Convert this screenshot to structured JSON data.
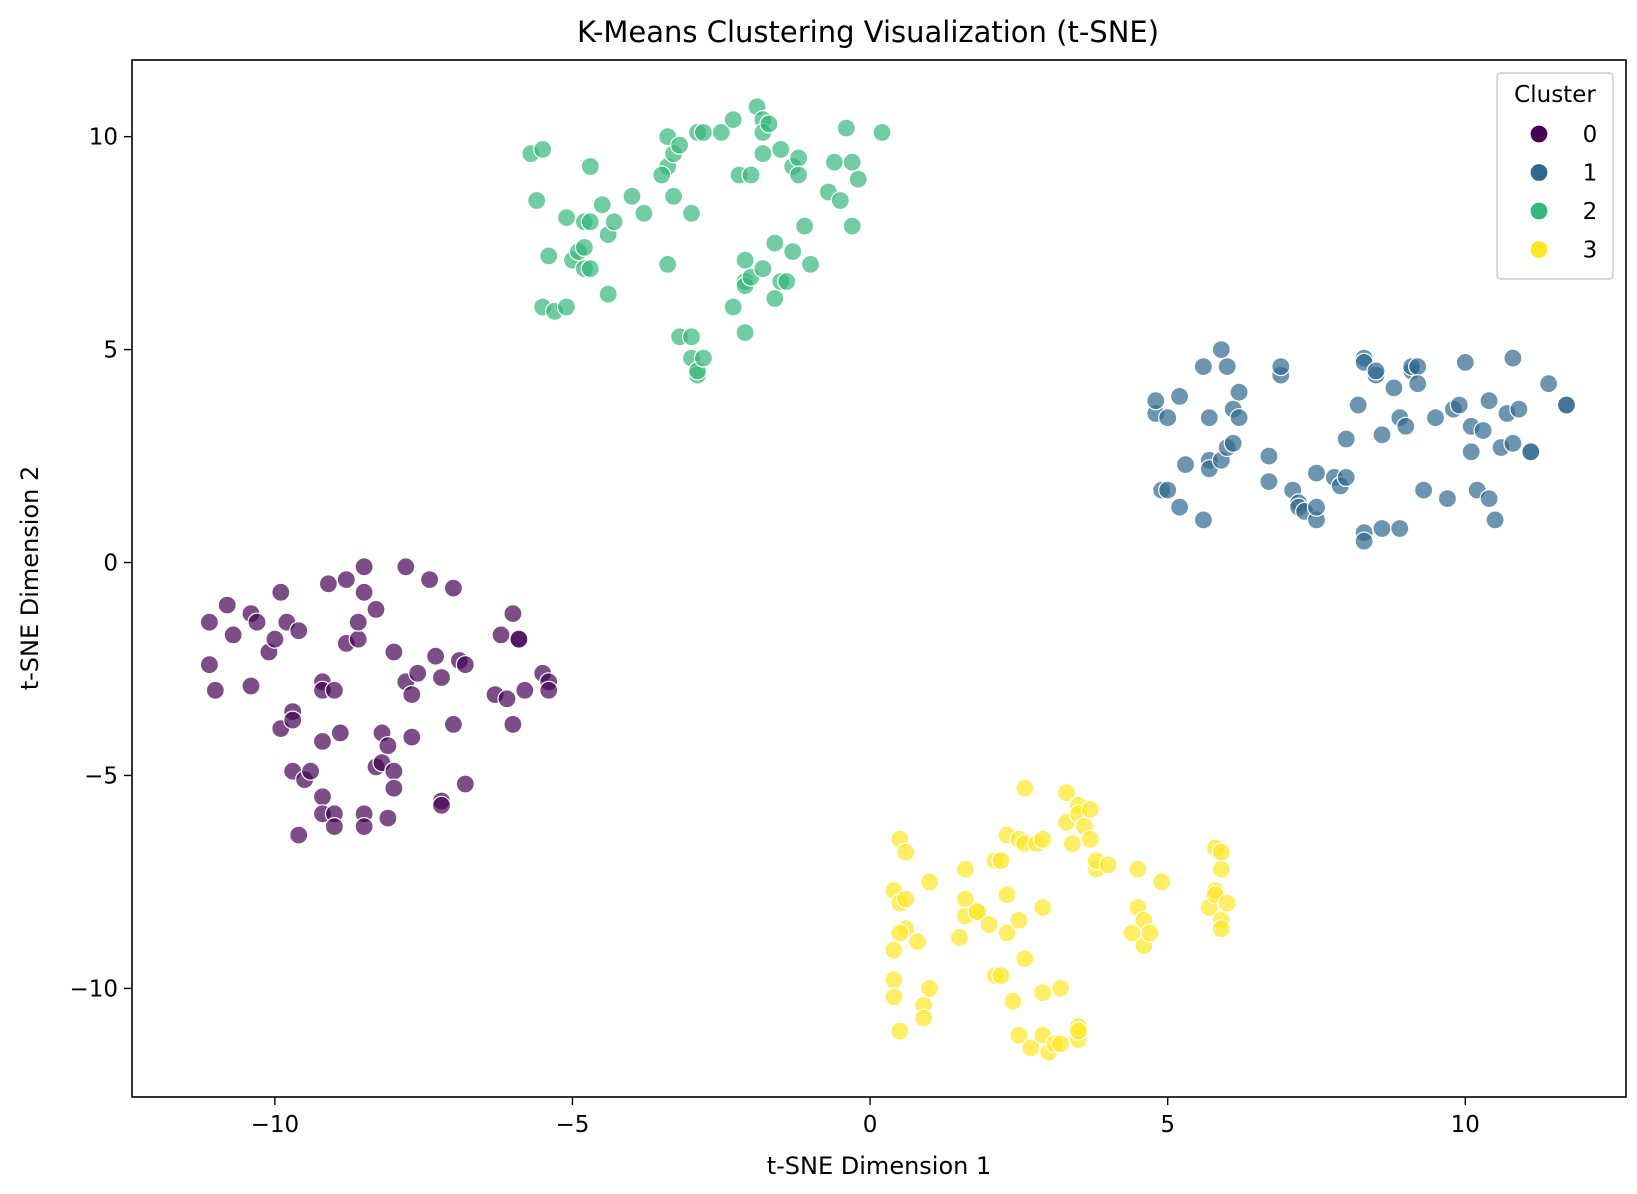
{
  "chart_data": {
    "type": "scatter",
    "title": "K-Means Clustering Visualization (t-SNE)",
    "xlabel": "t-SNE Dimension 1",
    "ylabel": "t-SNE Dimension 2",
    "xlim": [
      -12.4,
      12.7
    ],
    "ylim": [
      -12.55,
      11.8
    ],
    "x_ticks": [
      -10,
      -5,
      0,
      5,
      10
    ],
    "y_ticks": [
      -10,
      -5,
      0,
      5,
      10
    ],
    "x_tick_labels": [
      "−10",
      "−5",
      "0",
      "5",
      "10"
    ],
    "y_tick_labels": [
      "−10",
      "−5",
      "0",
      "5",
      "10"
    ],
    "grid": false,
    "legend": {
      "title": "Cluster",
      "placement": "top-right",
      "entries": [
        "0",
        "1",
        "2",
        "3"
      ]
    },
    "series": [
      {
        "name": "0",
        "color": "#440154",
        "points": [
          [
            -11.1,
            -1.4
          ],
          [
            -11.1,
            -2.4
          ],
          [
            -11.0,
            -3.0
          ],
          [
            -10.8,
            -1.0
          ],
          [
            -10.7,
            -1.7
          ],
          [
            -10.4,
            -1.2
          ],
          [
            -10.4,
            -2.9
          ],
          [
            -10.3,
            -1.4
          ],
          [
            -10.1,
            -2.1
          ],
          [
            -10.0,
            -1.8
          ],
          [
            -9.9,
            -0.7
          ],
          [
            -9.8,
            -1.4
          ],
          [
            -9.9,
            -3.9
          ],
          [
            -9.7,
            -3.5
          ],
          [
            -9.7,
            -3.7
          ],
          [
            -9.6,
            -1.6
          ],
          [
            -9.7,
            -4.9
          ],
          [
            -9.5,
            -5.1
          ],
          [
            -9.4,
            -4.9
          ],
          [
            -9.6,
            -6.4
          ],
          [
            -9.2,
            -2.8
          ],
          [
            -9.2,
            -3.0
          ],
          [
            -9.0,
            -3.0
          ],
          [
            -9.2,
            -4.2
          ],
          [
            -9.2,
            -5.5
          ],
          [
            -9.2,
            -5.9
          ],
          [
            -9.0,
            -5.9
          ],
          [
            -9.0,
            -6.2
          ],
          [
            -9.1,
            -0.5
          ],
          [
            -8.8,
            -0.4
          ],
          [
            -8.8,
            -1.9
          ],
          [
            -8.9,
            -4.0
          ],
          [
            -8.6,
            -1.8
          ],
          [
            -8.6,
            -1.4
          ],
          [
            -8.5,
            -0.1
          ],
          [
            -8.5,
            -0.7
          ],
          [
            -8.3,
            -1.1
          ],
          [
            -8.2,
            -4.0
          ],
          [
            -8.3,
            -4.8
          ],
          [
            -8.2,
            -4.7
          ],
          [
            -8.1,
            -4.3
          ],
          [
            -8.5,
            -5.9
          ],
          [
            -8.5,
            -6.2
          ],
          [
            -8.1,
            -6.0
          ],
          [
            -8.0,
            -2.1
          ],
          [
            -8.0,
            -4.9
          ],
          [
            -8.0,
            -5.3
          ],
          [
            -7.8,
            -0.1
          ],
          [
            -7.8,
            -2.8
          ],
          [
            -7.7,
            -3.1
          ],
          [
            -7.6,
            -2.6
          ],
          [
            -7.7,
            -4.1
          ],
          [
            -7.4,
            -0.4
          ],
          [
            -7.3,
            -2.2
          ],
          [
            -7.2,
            -2.7
          ],
          [
            -7.2,
            -5.6
          ],
          [
            -7.2,
            -5.7
          ],
          [
            -7.0,
            -0.6
          ],
          [
            -7.0,
            -3.8
          ],
          [
            -6.9,
            -2.3
          ],
          [
            -6.8,
            -2.4
          ],
          [
            -6.8,
            -5.2
          ],
          [
            -6.3,
            -3.1
          ],
          [
            -6.2,
            -1.7
          ],
          [
            -6.1,
            -3.2
          ],
          [
            -6.0,
            -1.2
          ],
          [
            -5.9,
            -1.8
          ],
          [
            -5.9,
            -1.8
          ],
          [
            -6.0,
            -3.8
          ],
          [
            -5.8,
            -3.0
          ],
          [
            -5.5,
            -2.6
          ],
          [
            -5.4,
            -2.8
          ],
          [
            -5.4,
            -3.0
          ]
        ]
      },
      {
        "name": "1",
        "color": "#31688e",
        "points": [
          [
            4.8,
            3.5
          ],
          [
            4.8,
            3.8
          ],
          [
            4.9,
            1.7
          ],
          [
            5.0,
            3.4
          ],
          [
            5.0,
            1.7
          ],
          [
            5.2,
            3.9
          ],
          [
            5.2,
            1.3
          ],
          [
            5.3,
            2.3
          ],
          [
            5.6,
            4.6
          ],
          [
            5.6,
            1.0
          ],
          [
            5.7,
            3.4
          ],
          [
            5.7,
            2.4
          ],
          [
            5.7,
            2.2
          ],
          [
            5.9,
            5.0
          ],
          [
            5.9,
            2.4
          ],
          [
            6.0,
            4.6
          ],
          [
            6.0,
            2.7
          ],
          [
            6.1,
            3.6
          ],
          [
            6.1,
            2.8
          ],
          [
            6.2,
            4.0
          ],
          [
            6.2,
            3.4
          ],
          [
            6.7,
            2.5
          ],
          [
            6.7,
            1.9
          ],
          [
            6.9,
            4.4
          ],
          [
            6.9,
            4.6
          ],
          [
            7.1,
            1.7
          ],
          [
            7.2,
            1.4
          ],
          [
            7.2,
            1.3
          ],
          [
            7.3,
            1.2
          ],
          [
            7.5,
            1.0
          ],
          [
            7.5,
            1.3
          ],
          [
            7.5,
            2.1
          ],
          [
            7.8,
            2.0
          ],
          [
            7.9,
            1.8
          ],
          [
            8.0,
            2.0
          ],
          [
            8.0,
            2.9
          ],
          [
            8.2,
            3.7
          ],
          [
            8.3,
            4.8
          ],
          [
            8.3,
            4.7
          ],
          [
            8.3,
            0.7
          ],
          [
            8.3,
            0.5
          ],
          [
            8.5,
            4.4
          ],
          [
            8.5,
            4.5
          ],
          [
            8.6,
            3.0
          ],
          [
            8.6,
            0.8
          ],
          [
            8.8,
            4.1
          ],
          [
            8.9,
            3.4
          ],
          [
            8.9,
            0.8
          ],
          [
            9.0,
            3.2
          ],
          [
            9.1,
            4.5
          ],
          [
            9.1,
            4.6
          ],
          [
            9.2,
            4.6
          ],
          [
            9.2,
            4.2
          ],
          [
            9.3,
            1.7
          ],
          [
            9.5,
            3.4
          ],
          [
            9.7,
            1.5
          ],
          [
            9.8,
            3.6
          ],
          [
            9.9,
            3.7
          ],
          [
            10.0,
            4.7
          ],
          [
            10.1,
            2.6
          ],
          [
            10.1,
            3.2
          ],
          [
            10.2,
            1.7
          ],
          [
            10.4,
            3.8
          ],
          [
            10.3,
            3.1
          ],
          [
            10.4,
            1.5
          ],
          [
            10.5,
            1.0
          ],
          [
            10.6,
            2.7
          ],
          [
            10.8,
            4.8
          ],
          [
            10.7,
            3.5
          ],
          [
            10.8,
            2.8
          ],
          [
            10.9,
            3.6
          ],
          [
            11.1,
            2.6
          ],
          [
            11.1,
            2.6
          ],
          [
            11.4,
            4.2
          ],
          [
            11.7,
            3.7
          ],
          [
            11.7,
            3.7
          ]
        ]
      },
      {
        "name": "2",
        "color": "#35b779",
        "points": [
          [
            -5.7,
            9.6
          ],
          [
            -5.6,
            8.5
          ],
          [
            -5.5,
            9.7
          ],
          [
            -5.5,
            6.0
          ],
          [
            -5.4,
            7.2
          ],
          [
            -5.3,
            5.9
          ],
          [
            -5.1,
            6.0
          ],
          [
            -5.1,
            8.1
          ],
          [
            -5.0,
            7.1
          ],
          [
            -4.9,
            7.3
          ],
          [
            -4.8,
            6.9
          ],
          [
            -4.8,
            7.4
          ],
          [
            -4.8,
            8.0
          ],
          [
            -4.7,
            8.0
          ],
          [
            -4.7,
            6.9
          ],
          [
            -4.7,
            9.3
          ],
          [
            -4.5,
            8.4
          ],
          [
            -4.4,
            7.7
          ],
          [
            -4.4,
            6.3
          ],
          [
            -4.3,
            8.0
          ],
          [
            -4.0,
            8.6
          ],
          [
            -3.8,
            8.2
          ],
          [
            -3.4,
            9.3
          ],
          [
            -3.5,
            9.1
          ],
          [
            -3.4,
            7.0
          ],
          [
            -3.3,
            9.6
          ],
          [
            -3.4,
            10.0
          ],
          [
            -3.3,
            8.6
          ],
          [
            -3.2,
            5.3
          ],
          [
            -3.2,
            9.8
          ],
          [
            -3.0,
            5.3
          ],
          [
            -3.0,
            8.2
          ],
          [
            -3.0,
            4.8
          ],
          [
            -2.9,
            10.1
          ],
          [
            -2.9,
            4.4
          ],
          [
            -2.9,
            4.5
          ],
          [
            -2.8,
            4.8
          ],
          [
            -2.8,
            10.1
          ],
          [
            -2.5,
            10.1
          ],
          [
            -2.3,
            6.0
          ],
          [
            -2.3,
            10.4
          ],
          [
            -2.2,
            9.1
          ],
          [
            -2.1,
            7.1
          ],
          [
            -2.1,
            6.6
          ],
          [
            -2.1,
            6.5
          ],
          [
            -2.1,
            5.4
          ],
          [
            -2.0,
            6.7
          ],
          [
            -2.0,
            9.1
          ],
          [
            -1.9,
            10.7
          ],
          [
            -1.8,
            10.4
          ],
          [
            -1.8,
            10.1
          ],
          [
            -1.8,
            9.6
          ],
          [
            -1.7,
            10.3
          ],
          [
            -1.8,
            6.9
          ],
          [
            -1.6,
            6.2
          ],
          [
            -1.6,
            7.5
          ],
          [
            -1.5,
            6.6
          ],
          [
            -1.5,
            9.7
          ],
          [
            -1.4,
            6.6
          ],
          [
            -1.3,
            7.3
          ],
          [
            -1.3,
            9.3
          ],
          [
            -1.2,
            9.5
          ],
          [
            -1.2,
            9.1
          ],
          [
            -1.1,
            7.9
          ],
          [
            -1.0,
            7.0
          ],
          [
            -0.7,
            8.7
          ],
          [
            -0.6,
            9.4
          ],
          [
            -0.5,
            8.5
          ],
          [
            -0.4,
            10.2
          ],
          [
            -0.3,
            7.9
          ],
          [
            -0.3,
            9.4
          ],
          [
            -0.2,
            9.0
          ],
          [
            0.2,
            10.1
          ]
        ]
      },
      {
        "name": "3",
        "color": "#fde725",
        "points": [
          [
            0.4,
            -9.8
          ],
          [
            0.4,
            -10.2
          ],
          [
            0.4,
            -9.1
          ],
          [
            0.4,
            -7.7
          ],
          [
            0.5,
            -6.5
          ],
          [
            0.5,
            -8.0
          ],
          [
            0.6,
            -8.6
          ],
          [
            0.5,
            -11.0
          ],
          [
            0.5,
            -8.7
          ],
          [
            0.6,
            -6.8
          ],
          [
            0.6,
            -7.9
          ],
          [
            0.8,
            -8.9
          ],
          [
            0.9,
            -10.4
          ],
          [
            0.9,
            -10.7
          ],
          [
            1.0,
            -10.0
          ],
          [
            1.0,
            -7.5
          ],
          [
            1.5,
            -8.8
          ],
          [
            1.6,
            -7.9
          ],
          [
            1.6,
            -8.3
          ],
          [
            1.6,
            -7.2
          ],
          [
            1.8,
            -8.2
          ],
          [
            1.8,
            -8.2
          ],
          [
            2.0,
            -8.5
          ],
          [
            2.1,
            -7.0
          ],
          [
            2.1,
            -9.7
          ],
          [
            2.2,
            -7.0
          ],
          [
            2.2,
            -9.7
          ],
          [
            2.3,
            -8.7
          ],
          [
            2.3,
            -7.8
          ],
          [
            2.3,
            -6.4
          ],
          [
            2.4,
            -10.3
          ],
          [
            2.5,
            -6.5
          ],
          [
            2.5,
            -8.4
          ],
          [
            2.5,
            -11.1
          ],
          [
            2.6,
            -5.3
          ],
          [
            2.6,
            -9.3
          ],
          [
            2.6,
            -6.6
          ],
          [
            2.7,
            -11.4
          ],
          [
            2.8,
            -6.6
          ],
          [
            2.9,
            -11.1
          ],
          [
            2.9,
            -8.1
          ],
          [
            2.9,
            -10.1
          ],
          [
            2.9,
            -6.5
          ],
          [
            3.0,
            -11.5
          ],
          [
            3.1,
            -11.3
          ],
          [
            3.2,
            -10.0
          ],
          [
            3.2,
            -11.3
          ],
          [
            3.3,
            -5.4
          ],
          [
            3.3,
            -6.1
          ],
          [
            3.4,
            -6.6
          ],
          [
            3.5,
            -5.7
          ],
          [
            3.5,
            -11.2
          ],
          [
            3.5,
            -10.9
          ],
          [
            3.5,
            -11.0
          ],
          [
            3.5,
            -5.9
          ],
          [
            3.6,
            -6.2
          ],
          [
            3.7,
            -5.8
          ],
          [
            3.7,
            -6.5
          ],
          [
            3.8,
            -7.2
          ],
          [
            3.8,
            -7.0
          ],
          [
            4.0,
            -7.1
          ],
          [
            4.4,
            -8.7
          ],
          [
            4.5,
            -7.2
          ],
          [
            4.5,
            -8.1
          ],
          [
            4.6,
            -8.4
          ],
          [
            4.6,
            -9.0
          ],
          [
            4.7,
            -8.7
          ],
          [
            4.9,
            -7.5
          ],
          [
            5.7,
            -8.1
          ],
          [
            5.8,
            -6.7
          ],
          [
            5.8,
            -7.7
          ],
          [
            5.8,
            -7.8
          ],
          [
            5.9,
            -7.2
          ],
          [
            5.9,
            -8.4
          ],
          [
            5.9,
            -8.6
          ],
          [
            5.9,
            -6.8
          ],
          [
            6.0,
            -8.0
          ]
        ]
      }
    ]
  }
}
